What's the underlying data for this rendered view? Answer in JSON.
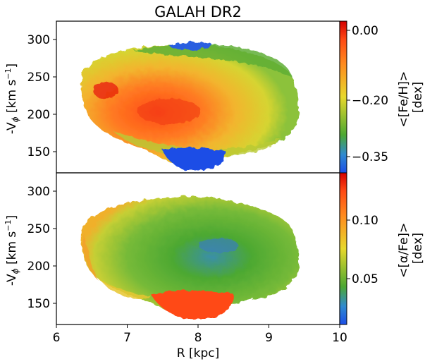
{
  "chart_data": [
    {
      "type": "heatmap",
      "title": "GALAH DR2",
      "xlabel": "",
      "ylabel": "-V",
      "ylabel_sub": "ϕ",
      "ylabel_units": "[km s",
      "ylabel_units_sup": "−1",
      "ylabel_units_end": "]",
      "xlim": [
        6,
        10
      ],
      "ylim": [
        120,
        325
      ],
      "yticks": [
        150,
        200,
        250,
        300
      ],
      "colorbar": {
        "label_line1": "<[Fe/H]>",
        "label_line2": "[dex]",
        "range": [
          -0.38,
          0.01
        ],
        "ticks": [
          0.0,
          -0.2,
          -0.35
        ],
        "tick_labels": [
          "0.00",
          "−0.20",
          "−0.35"
        ],
        "colors": [
          "#1c4ee6",
          "#4ca832",
          "#e7d82c",
          "#ff5a1e",
          "#d40000"
        ]
      },
      "grid": false,
      "description_of_pattern": "metallicity high (red) in lower-left, low (blue) at top and bottom"
    },
    {
      "type": "heatmap",
      "title": "",
      "xlabel": "R [kpc]",
      "ylabel": "-V",
      "ylabel_sub": "ϕ",
      "ylabel_units": "[km s",
      "ylabel_units_sup": "−1",
      "ylabel_units_end": "]",
      "xlim": [
        6,
        10
      ],
      "ylim": [
        120,
        325
      ],
      "xticks": [
        6,
        7,
        8,
        9,
        10
      ],
      "yticks": [
        150,
        200,
        250,
        300
      ],
      "colorbar": {
        "label_line1": "<[α/Fe]>",
        "label_line2": "[dex]",
        "range": [
          0.01,
          0.135
        ],
        "ticks": [
          0.1,
          0.05
        ],
        "tick_labels": [
          "0.10",
          "0.05"
        ],
        "colors": [
          "#1c4ee6",
          "#4ca832",
          "#e7d82c",
          "#ff5a1e",
          "#d40000"
        ]
      },
      "grid": false
    }
  ]
}
